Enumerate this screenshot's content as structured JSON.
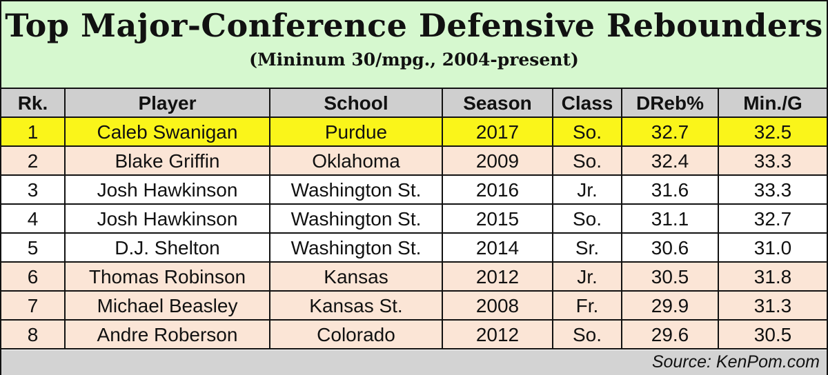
{
  "header": {
    "title": "Top Major-Conference Defensive Rebounders",
    "subtitle": "(Mininum 30/mpg., 2004-present)"
  },
  "table": {
    "columns": [
      "Rk.",
      "Player",
      "School",
      "Season",
      "Class",
      "DReb%",
      "Min./G"
    ],
    "rows": [
      [
        "1",
        "Caleb Swanigan",
        "Purdue",
        "2017",
        "So.",
        "32.7",
        "32.5"
      ],
      [
        "2",
        "Blake Griffin",
        "Oklahoma",
        "2009",
        "So.",
        "32.4",
        "33.3"
      ],
      [
        "3",
        "Josh Hawkinson",
        "Washington St.",
        "2016",
        "Jr.",
        "31.6",
        "33.3"
      ],
      [
        "4",
        "Josh Hawkinson",
        "Washington St.",
        "2015",
        "So.",
        "31.1",
        "32.7"
      ],
      [
        "5",
        "D.J. Shelton",
        "Washington St.",
        "2014",
        "Sr.",
        "30.6",
        "31.0"
      ],
      [
        "6",
        "Thomas Robinson",
        "Kansas",
        "2012",
        "Jr.",
        "30.5",
        "31.8"
      ],
      [
        "7",
        "Michael Beasley",
        "Kansas St.",
        "2008",
        "Fr.",
        "29.9",
        "31.3"
      ],
      [
        "8",
        "Andre Roberson",
        "Colorado",
        "2012",
        "So.",
        "29.6",
        "30.5"
      ]
    ]
  },
  "footer": {
    "source": "Source: KenPom.com"
  }
}
